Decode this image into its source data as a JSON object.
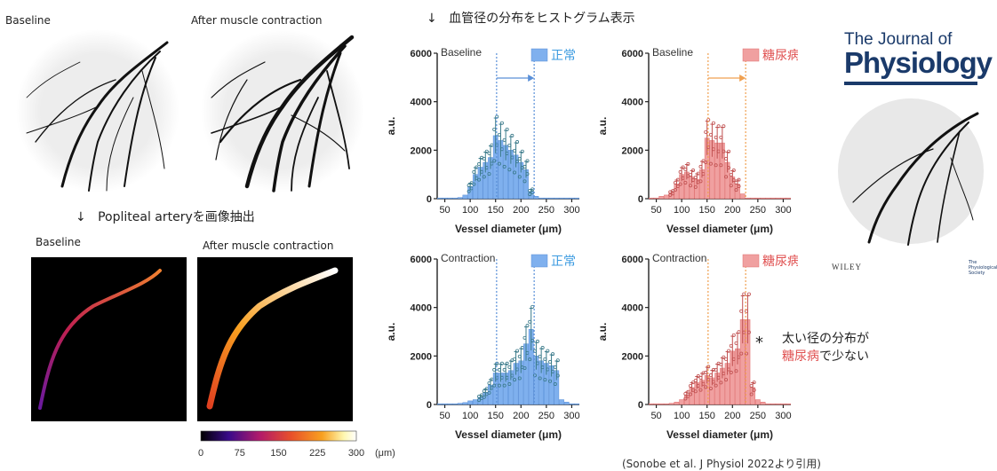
{
  "labels": {
    "baseline_img": "Baseline",
    "after_img": "After muscle contraction",
    "arrow_down": "↓",
    "extract_note": "Popliteal arteryを画像抽出",
    "baseline_map": "Baseline",
    "after_map": "After muscle contraction",
    "hist_note": "血管径の分布をヒストグラム表示",
    "wide_dist_line1": "太い径の分布が",
    "wide_dist_line2_red": "糖尿病",
    "wide_dist_line2_rest": "で少ない",
    "asterisk": "*",
    "citation": "(Sonobe et al. J Physiol 2022より引用)"
  },
  "journal": {
    "name_line1": "The Journal of",
    "name_line2": "Physiology",
    "publisher": "WILEY",
    "society": "The Physiological Society"
  },
  "colorbar": {
    "ticks": [
      "0",
      "75",
      "150",
      "225",
      "300"
    ],
    "unit": "(μm)",
    "colors": [
      "#000000",
      "#3a0a8a",
      "#b21a6a",
      "#e8502a",
      "#f8a020",
      "#fff8b0",
      "#ffffff"
    ]
  },
  "colors": {
    "normal_bar": "#7fb0ee",
    "normal_edge": "#5a90d8",
    "normal_dots": "#3a7a8a",
    "diabetes_bar": "#f0a0a0",
    "diabetes_edge": "#e07070",
    "diabetes_dots": "#c05050",
    "normal_text": "#3a9ae0",
    "diabetes_text": "#e05050",
    "arrow_blue": "#5a90d8",
    "arrow_orange": "#f0a050"
  },
  "chart_data": [
    {
      "id": "baseline-normal",
      "type": "bar",
      "title": "Baseline",
      "legend": "正常",
      "xlabel": "Vessel diameter (μm)",
      "ylabel": "a.u.",
      "ylim": [
        0,
        6000
      ],
      "yticks": [
        0,
        2000,
        4000,
        6000
      ],
      "xticks": [
        50,
        100,
        150,
        200,
        250,
        300
      ],
      "x": [
        40,
        50,
        60,
        70,
        80,
        90,
        100,
        110,
        120,
        130,
        140,
        150,
        160,
        170,
        180,
        190,
        200,
        210,
        220,
        230,
        240,
        250,
        260,
        270,
        280,
        290,
        300,
        310
      ],
      "values": [
        30,
        30,
        30,
        30,
        50,
        150,
        500,
        1000,
        1300,
        1500,
        1700,
        2600,
        2400,
        2200,
        2000,
        1800,
        1500,
        1200,
        300,
        100,
        30,
        30,
        30,
        30,
        30,
        30,
        30,
        30
      ],
      "vlines": [
        152,
        226
      ]
    },
    {
      "id": "baseline-diabetes",
      "type": "bar",
      "title": "Baseline",
      "legend": "糖尿病",
      "xlabel": "Vessel diameter (μm)",
      "ylabel": "a.u.",
      "ylim": [
        0,
        6000
      ],
      "yticks": [
        0,
        2000,
        4000,
        6000
      ],
      "xticks": [
        50,
        100,
        150,
        200,
        250,
        300
      ],
      "x": [
        40,
        50,
        60,
        70,
        80,
        90,
        100,
        110,
        120,
        130,
        140,
        150,
        160,
        170,
        180,
        190,
        200,
        210,
        220,
        230,
        240,
        250,
        260,
        270,
        280,
        290,
        300,
        310
      ],
      "values": [
        30,
        30,
        100,
        150,
        250,
        600,
        1000,
        1100,
        900,
        800,
        1200,
        2500,
        2400,
        2300,
        2300,
        1500,
        900,
        600,
        200,
        30,
        30,
        30,
        30,
        30,
        30,
        30,
        30,
        30
      ],
      "vlines": [
        152,
        226
      ]
    },
    {
      "id": "contraction-normal",
      "type": "bar",
      "title": "Contraction",
      "legend": "正常",
      "xlabel": "Vessel diameter (μm)",
      "ylabel": "a.u.",
      "ylim": [
        0,
        6000
      ],
      "yticks": [
        0,
        2000,
        4000,
        6000
      ],
      "xticks": [
        50,
        100,
        150,
        200,
        250,
        300
      ],
      "x": [
        40,
        50,
        60,
        70,
        80,
        90,
        100,
        110,
        120,
        130,
        140,
        150,
        160,
        170,
        180,
        190,
        200,
        210,
        220,
        230,
        240,
        250,
        260,
        270,
        280,
        290,
        300,
        310
      ],
      "values": [
        30,
        30,
        30,
        30,
        50,
        80,
        150,
        200,
        300,
        500,
        800,
        1300,
        1300,
        1300,
        1400,
        1700,
        1800,
        2500,
        3100,
        2000,
        1800,
        1700,
        1600,
        1400,
        200,
        100,
        30,
        30
      ],
      "vlines": [
        152,
        226
      ]
    },
    {
      "id": "contraction-diabetes",
      "type": "bar",
      "title": "Contraction",
      "legend": "糖尿病",
      "xlabel": "Vessel diameter (μm)",
      "ylabel": "a.u.",
      "ylim": [
        0,
        6000
      ],
      "yticks": [
        0,
        2000,
        4000,
        6000
      ],
      "xticks": [
        50,
        100,
        150,
        200,
        250,
        300
      ],
      "x": [
        40,
        50,
        60,
        70,
        80,
        90,
        100,
        110,
        120,
        130,
        140,
        150,
        160,
        170,
        180,
        190,
        200,
        210,
        220,
        230,
        240,
        250,
        260,
        270,
        280,
        290,
        300,
        310
      ],
      "values": [
        30,
        30,
        30,
        30,
        50,
        100,
        200,
        400,
        700,
        900,
        1000,
        1200,
        1100,
        1300,
        1500,
        1700,
        2200,
        2300,
        3500,
        3500,
        700,
        200,
        100,
        30,
        30,
        30,
        30,
        30
      ],
      "vlines": [
        152,
        226
      ]
    }
  ]
}
